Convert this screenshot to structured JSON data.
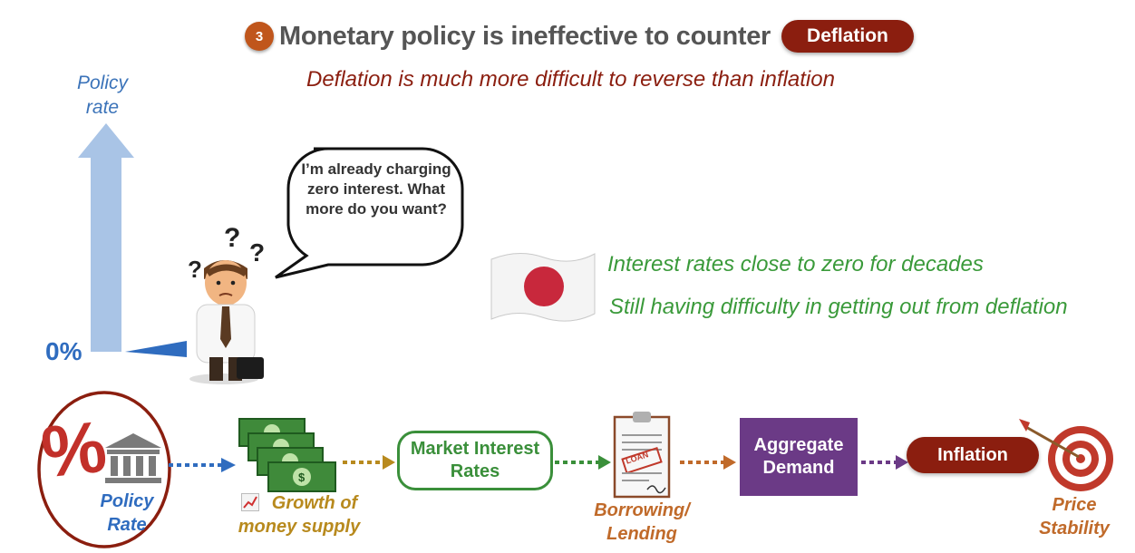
{
  "header": {
    "step_number": "3",
    "title": "Monetary policy is ineffective to counter",
    "badge": "Deflation",
    "subtitle": "Deflation is much more difficult to reverse than inflation"
  },
  "axis": {
    "label": "Policy rate",
    "zero": "0%"
  },
  "speech_bubble": {
    "text": "I’m already charging zero interest. What more do you want?"
  },
  "japan_notes": {
    "line1": "Interest rates close to zero for decades",
    "line2": "Still having difficulty in getting out from deflation"
  },
  "flow": {
    "percent_symbol": "%",
    "policy_rate": "Policy Rate",
    "money_supply": "Growth of money supply",
    "market_rates": "Market Interest Rates",
    "loan_stamp": "LOAN",
    "borrowing": "Borrowing/ Lending",
    "aggregate_demand": "Aggregate Demand",
    "inflation": "Inflation",
    "price_stability": "Price Stability"
  },
  "colors": {
    "accent_red": "#8b1e0f",
    "step_orange": "#c0561c",
    "policy_blue": "#2f6cbf",
    "money_gold": "#b88a1e",
    "market_green": "#3a8f3a",
    "lending_orange": "#c06a2a",
    "demand_purple": "#6b3a86"
  },
  "icons": [
    "bank-icon",
    "money-stack-icon",
    "loan-document-icon",
    "target-icon",
    "japan-flag-icon",
    "businessman-icon",
    "chart-icon"
  ]
}
